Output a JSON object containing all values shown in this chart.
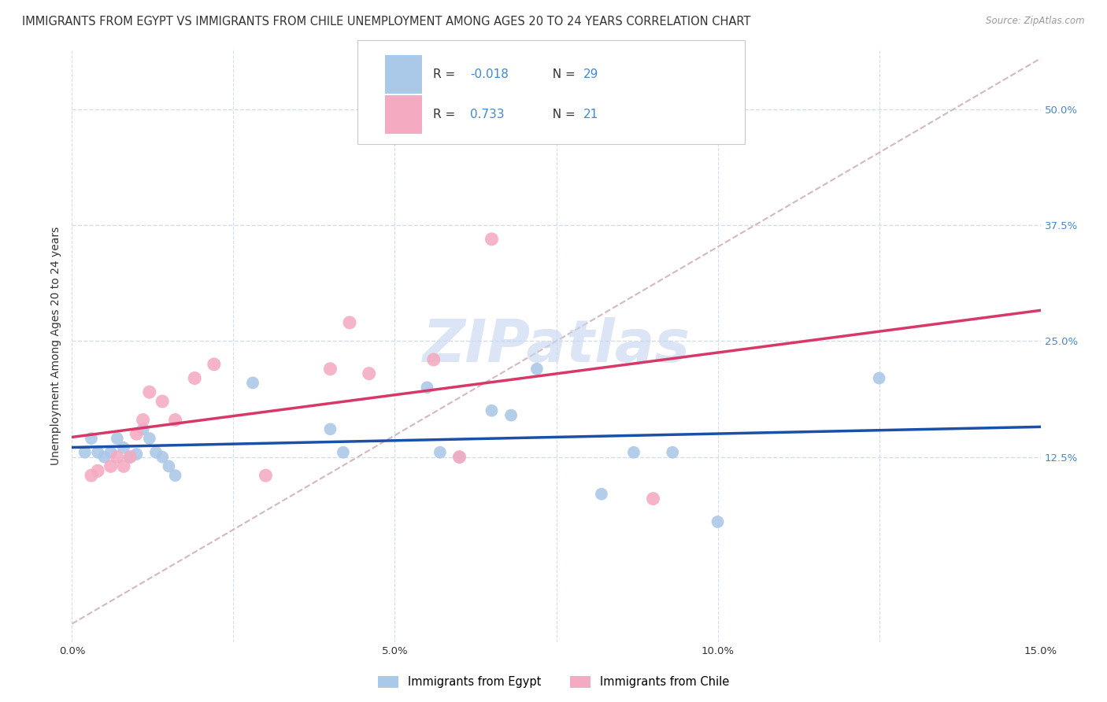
{
  "title": "IMMIGRANTS FROM EGYPT VS IMMIGRANTS FROM CHILE UNEMPLOYMENT AMONG AGES 20 TO 24 YEARS CORRELATION CHART",
  "source": "Source: ZipAtlas.com",
  "ylabel": "Unemployment Among Ages 20 to 24 years",
  "ytick_labels": [
    "12.5%",
    "25.0%",
    "37.5%",
    "50.0%"
  ],
  "ytick_values": [
    0.125,
    0.25,
    0.375,
    0.5
  ],
  "xtick_values": [
    0.0,
    0.025,
    0.05,
    0.075,
    0.1,
    0.125,
    0.15
  ],
  "xtick_labels": [
    "0.0%",
    "",
    "5.0%",
    "",
    "10.0%",
    "",
    "15.0%"
  ],
  "xlim": [
    0.0,
    0.15
  ],
  "ylim": [
    -0.075,
    0.565
  ],
  "legend_label1": "Immigrants from Egypt",
  "legend_label2": "Immigrants from Chile",
  "R1_prefix": "R = ",
  "R1_val": "-0.018",
  "N1_prefix": "  N = ",
  "N1_val": "29",
  "R2_prefix": "R =  ",
  "R2_val": "0.733",
  "N2_prefix": "  N = ",
  "N2_val": "21",
  "color_egypt": "#aac8e8",
  "color_egypt_line": "#1a50a8",
  "color_chile": "#f4aac0",
  "color_chile_line": "#d83868",
  "color_diag": "#d4b8c0",
  "watermark_text": "ZIPatlas",
  "watermark_color": "#c8d8f0",
  "egypt_x": [
    0.002,
    0.003,
    0.004,
    0.005,
    0.006,
    0.007,
    0.008,
    0.009,
    0.01,
    0.011,
    0.012,
    0.013,
    0.014,
    0.015,
    0.016,
    0.028,
    0.04,
    0.042,
    0.055,
    0.057,
    0.06,
    0.065,
    0.068,
    0.072,
    0.082,
    0.087,
    0.093,
    0.1,
    0.125
  ],
  "egypt_y": [
    0.13,
    0.145,
    0.13,
    0.125,
    0.13,
    0.145,
    0.135,
    0.125,
    0.128,
    0.155,
    0.145,
    0.13,
    0.125,
    0.115,
    0.105,
    0.205,
    0.155,
    0.13,
    0.2,
    0.13,
    0.125,
    0.175,
    0.17,
    0.22,
    0.085,
    0.13,
    0.13,
    0.055,
    0.21
  ],
  "chile_x": [
    0.003,
    0.004,
    0.006,
    0.007,
    0.008,
    0.009,
    0.01,
    0.011,
    0.012,
    0.014,
    0.016,
    0.019,
    0.022,
    0.03,
    0.04,
    0.043,
    0.046,
    0.056,
    0.06,
    0.065,
    0.09
  ],
  "chile_y": [
    0.105,
    0.11,
    0.115,
    0.125,
    0.115,
    0.125,
    0.15,
    0.165,
    0.195,
    0.185,
    0.165,
    0.21,
    0.225,
    0.105,
    0.22,
    0.27,
    0.215,
    0.23,
    0.125,
    0.36,
    0.08
  ],
  "egypt_marker_size": 130,
  "chile_marker_size": 150,
  "background_color": "#ffffff",
  "grid_color": "#d4dcea",
  "title_fontsize": 10.5,
  "axis_label_fontsize": 10,
  "tick_fontsize": 9.5,
  "legend_fontsize": 11,
  "text_color": "#333333",
  "blue_color": "#4488cc"
}
